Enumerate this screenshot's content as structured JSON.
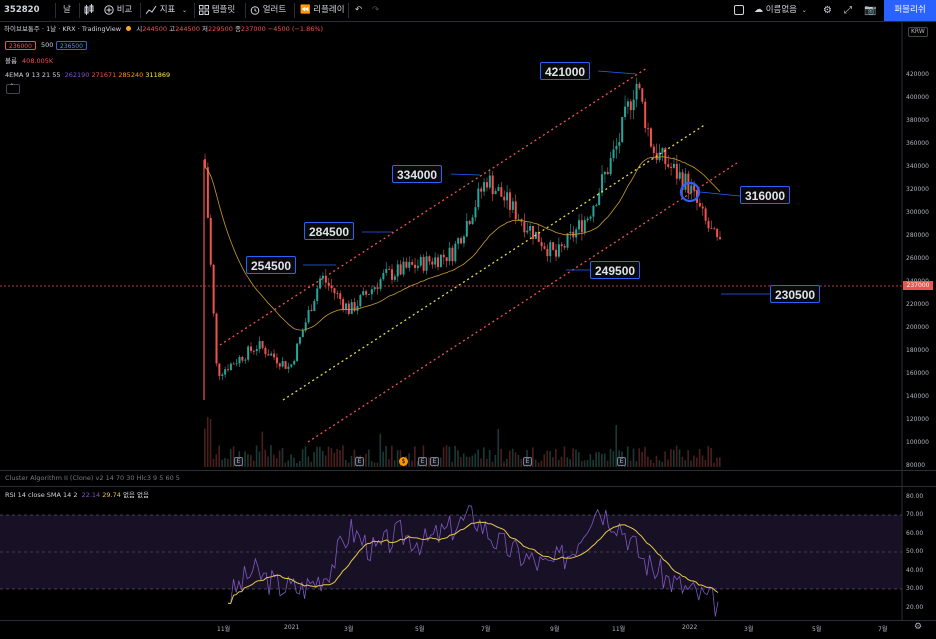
{
  "toolbar": {
    "symbol": "352820",
    "interval": "날",
    "compare": "비교",
    "indicators": "지표",
    "templates": "템플릿",
    "alert": "얼러트",
    "replay": "리플레이",
    "layout_name": "이름없음",
    "publish": "퍼블리쉬"
  },
  "legend": {
    "title": "하이브보통주 · 1날 · KRX · TradingView",
    "ohlc_o_label": "시",
    "ohlc_o": "244500",
    "ohlc_h_label": "고",
    "ohlc_h": "244500",
    "ohlc_l_label": "저",
    "ohlc_l": "229500",
    "ohlc_c_label": "종",
    "ohlc_c": "237000",
    "change": "−4500 (−1.86%)",
    "bid": "236000",
    "spread": "500",
    "ask": "236500",
    "volume_label": "볼륨",
    "volume_value": "408.005K",
    "ema_label": "4EMA 9 13 21 55",
    "ema_values": [
      "262190",
      "271671",
      "285240",
      "311869"
    ],
    "cluster_label": "Cluster Algorithm II (Clone) v2 14 70 30 Hlc3 9 5 60 5",
    "rsi_label": "RSI 14 close SMA 14 2",
    "rsi_value": "22.14",
    "rsi_sma": "29.74",
    "rsi_extra": "없음 없음"
  },
  "price_axis": {
    "currency": "KRW",
    "ticks": [
      "420000",
      "400000",
      "380000",
      "360000",
      "340000",
      "320000",
      "300000",
      "280000",
      "260000",
      "240000",
      "220000",
      "200000",
      "180000",
      "160000",
      "140000",
      "120000",
      "100000",
      "80000"
    ],
    "last_price": "237000"
  },
  "rsi_axis": {
    "ticks": [
      "80.00",
      "70.00",
      "60.00",
      "50.00",
      "40.00",
      "30.00",
      "20.00"
    ]
  },
  "time_axis": {
    "ticks": [
      "11월",
      "2021",
      "3월",
      "5월",
      "7월",
      "9월",
      "11월",
      "2022",
      "3월",
      "5월",
      "7월"
    ]
  },
  "callouts": [
    "421000",
    "334000",
    "284500",
    "254500",
    "249500",
    "316000",
    "230500"
  ],
  "colors": {
    "up": "#26a69a",
    "down": "#ef5350",
    "channel_upper": "#ef5350",
    "channel_mid": "#e6d94a",
    "ema_slow": "#c79b2e",
    "rsi_line": "#7e57c2",
    "rsi_sma": "#e6c84a",
    "accent": "#2962ff"
  },
  "chart_data": {
    "type": "candlestick",
    "x": [
      "2020-10-15",
      "2020-11-01",
      "2020-12-01",
      "2021-01-01",
      "2021-02-01",
      "2021-03-01",
      "2021-04-01",
      "2021-05-01",
      "2021-06-01",
      "2021-07-01",
      "2021-08-01",
      "2021-09-01",
      "2021-10-01",
      "2021-11-01",
      "2021-11-15",
      "2021-12-01",
      "2021-12-15",
      "2022-01-01",
      "2022-01-15",
      "2022-02-01",
      "2022-02-15"
    ],
    "close": [
      340000,
      160000,
      185000,
      165000,
      245000,
      215000,
      245000,
      255000,
      265000,
      330000,
      295000,
      262000,
      298000,
      360000,
      415000,
      355000,
      340000,
      325000,
      292000,
      270000,
      237000
    ],
    "ylim": [
      80000,
      440000
    ],
    "rsi_ylim": [
      15,
      85
    ],
    "rsi_bands": [
      70,
      50,
      30
    ],
    "annotations": [
      421000,
      334000,
      284500,
      254500,
      249500,
      316000,
      230500
    ]
  }
}
